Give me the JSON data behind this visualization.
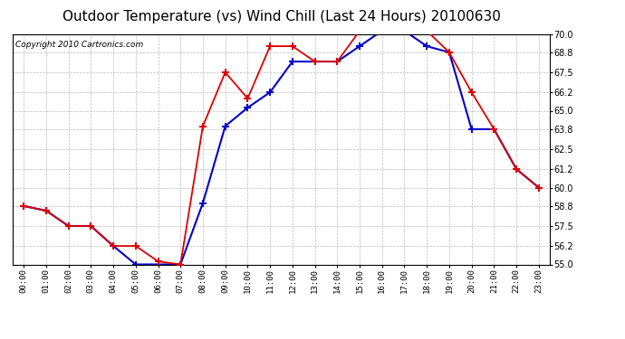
{
  "title": "Outdoor Temperature (vs) Wind Chill (Last 24 Hours) 20100630",
  "copyright": "Copyright 2010 Cartronics.com",
  "hours": [
    "00:00",
    "01:00",
    "02:00",
    "03:00",
    "04:00",
    "05:00",
    "06:00",
    "07:00",
    "08:00",
    "09:00",
    "10:00",
    "11:00",
    "12:00",
    "13:00",
    "14:00",
    "15:00",
    "16:00",
    "17:00",
    "18:00",
    "19:00",
    "20:00",
    "21:00",
    "22:00",
    "23:00"
  ],
  "temp": [
    58.8,
    58.5,
    57.5,
    57.5,
    56.2,
    56.2,
    55.2,
    55.0,
    64.0,
    67.5,
    65.8,
    69.2,
    69.2,
    68.2,
    68.2,
    70.2,
    70.2,
    70.2,
    70.2,
    68.8,
    66.2,
    63.8,
    61.2,
    60.0
  ],
  "wind_chill": [
    58.8,
    58.5,
    57.5,
    57.5,
    56.2,
    55.0,
    55.0,
    55.0,
    59.0,
    64.0,
    65.2,
    66.2,
    68.2,
    68.2,
    68.2,
    69.2,
    70.2,
    70.2,
    69.2,
    68.8,
    63.8,
    63.8,
    61.2,
    60.0
  ],
  "temp_color": "#dd0000",
  "wind_chill_color": "#0000cc",
  "ylim": [
    55.0,
    70.0
  ],
  "yticks": [
    55.0,
    56.2,
    57.5,
    58.8,
    60.0,
    61.2,
    62.5,
    63.8,
    65.0,
    66.2,
    67.5,
    68.8,
    70.0
  ],
  "bg_color": "#ffffff",
  "grid_color": "#bbbbbb",
  "title_fontsize": 11,
  "copyright_fontsize": 6.5
}
